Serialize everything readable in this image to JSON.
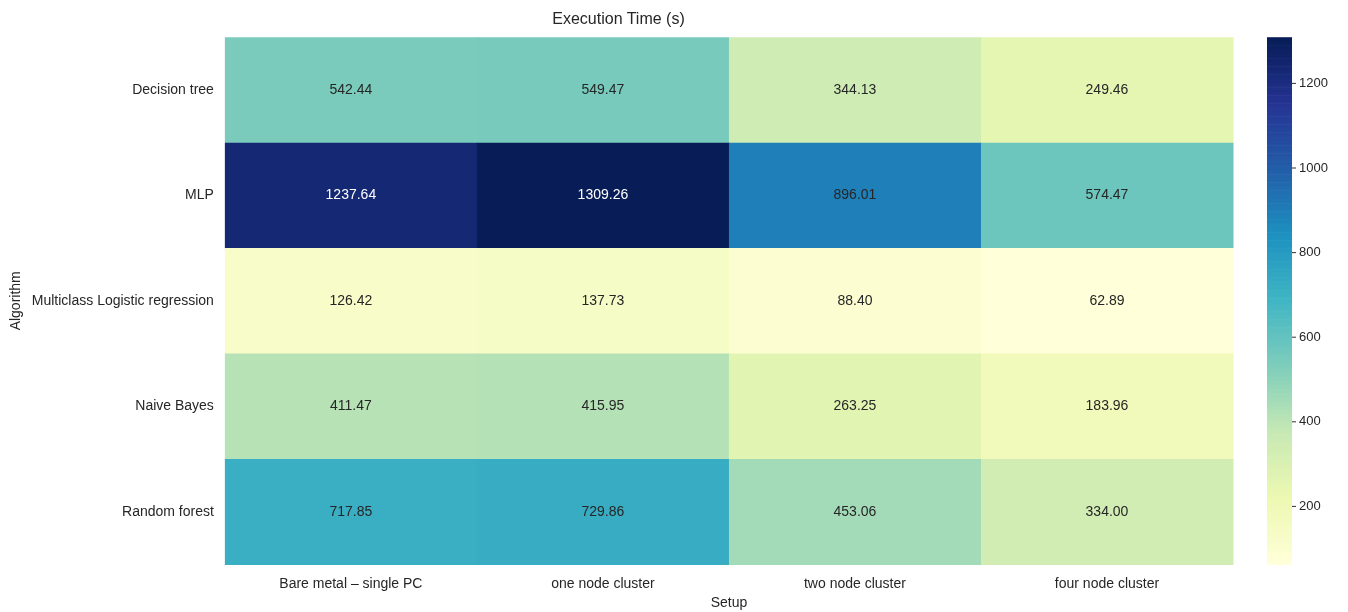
{
  "chart_data": {
    "type": "heatmap",
    "title": "Execution Time (s)",
    "xlabel": "Setup",
    "ylabel": "Algorithm",
    "categories": [
      "Bare metal – single PC",
      "one node cluster",
      "two node cluster",
      "four node cluster"
    ],
    "y_categories": [
      "Decision tree",
      "MLP",
      "Multiclass Logistic regression",
      "Naive Bayes",
      "Random forest"
    ],
    "cells": [
      [
        542.44,
        549.47,
        344.13,
        249.46
      ],
      [
        1237.64,
        1309.26,
        896.01,
        574.47
      ],
      [
        126.42,
        137.73,
        88.4,
        62.89
      ],
      [
        411.47,
        415.95,
        263.25,
        183.96
      ],
      [
        717.85,
        729.86,
        453.06,
        334.0
      ]
    ],
    "cell_labels": [
      [
        "542.44",
        "549.47",
        "344.13",
        "249.46"
      ],
      [
        "1237.64",
        "1309.26",
        "896.01",
        "574.47"
      ],
      [
        "126.42",
        "137.73",
        "88.40",
        "62.89"
      ],
      [
        "411.47",
        "415.95",
        "263.25",
        "183.96"
      ],
      [
        "717.85",
        "729.86",
        "453.06",
        "334.00"
      ]
    ],
    "data_labels": true,
    "clim": [
      62.89,
      1309.26
    ],
    "cticks": [
      200,
      400,
      600,
      800,
      1000,
      1200
    ]
  }
}
